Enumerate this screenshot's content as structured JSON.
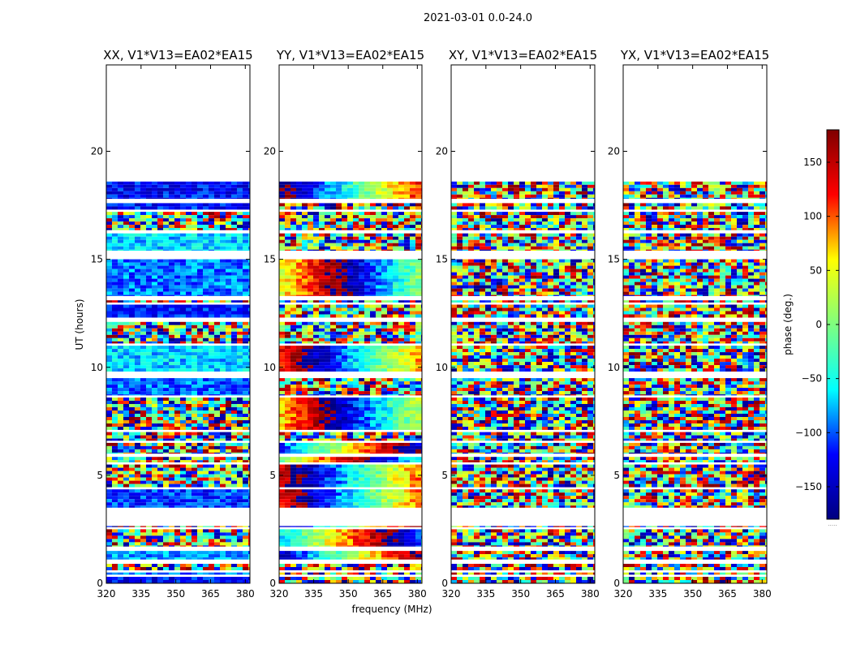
{
  "chart_data": {
    "type": "heatmap",
    "suptitle": "2021-03-01 0.0-24.0",
    "xlabel": "frequency (MHz)",
    "ylabel": "UT (hours)",
    "xlim": [
      320,
      382
    ],
    "ylim": [
      0,
      24
    ],
    "xticks": [
      320,
      335,
      350,
      365,
      380
    ],
    "yticks": [
      0,
      5,
      10,
      15,
      20
    ],
    "panels": [
      {
        "id": "xx",
        "title": "XX, V1*V13=EA02*EA15"
      },
      {
        "id": "yy",
        "title": "YY, V1*V13=EA02*EA15"
      },
      {
        "id": "xy",
        "title": "XY, V1*V13=EA02*EA15"
      },
      {
        "id": "yx",
        "title": "YX, V1*V13=EA02*EA15"
      }
    ],
    "data_coverage_hours": [
      [
        0,
        0.3
      ],
      [
        0.4,
        0.5
      ],
      [
        0.6,
        0.9
      ],
      [
        1.1,
        1.5
      ],
      [
        1.7,
        2.5
      ],
      [
        2.6,
        2.65
      ],
      [
        3.5,
        4.35
      ],
      [
        4.45,
        5.5
      ],
      [
        5.6,
        5.85
      ],
      [
        6.0,
        6.5
      ],
      [
        6.6,
        7.0
      ],
      [
        7.1,
        8.6
      ],
      [
        8.7,
        9.5
      ],
      [
        9.8,
        11.0
      ],
      [
        11.1,
        12.1
      ],
      [
        12.3,
        12.9
      ],
      [
        13.0,
        13.1
      ],
      [
        13.3,
        15.0
      ],
      [
        15.4,
        16.2
      ],
      [
        16.35,
        17.2
      ],
      [
        17.3,
        17.6
      ],
      [
        17.8,
        18.6
      ]
    ],
    "colorbar": {
      "label": "phase (deg.)",
      "range": [
        -180,
        180
      ],
      "ticks": [
        150,
        100,
        50,
        0,
        -50,
        -100,
        -150
      ],
      "tick_labels": [
        "150",
        "100",
        "50",
        "0",
        "−50",
        "−100",
        "−150"
      ],
      "colormap": "jet",
      "colors": [
        "#00007f",
        "#0000ff",
        "#00ffff",
        "#7fff7f",
        "#ffff00",
        "#ff0000",
        "#7f0000"
      ]
    },
    "colorbar_footnote": "....."
  }
}
